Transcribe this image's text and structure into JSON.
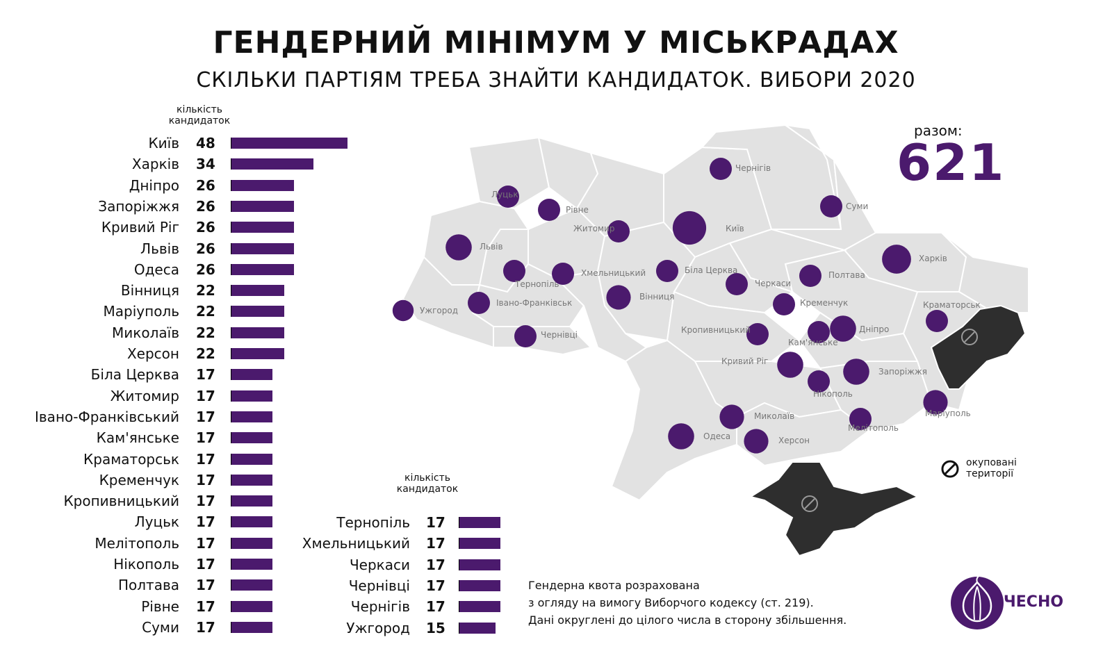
{
  "title": "ГЕНДЕРНИЙ МІНІМУМ У МІСЬКРАДАХ",
  "subtitle": "СКІЛЬКИ ПАРТІЯМ ТРЕБА ЗНАЙТИ КАНДИДАТОК. ВИБОРИ 2020",
  "column_header_line1": "кількість",
  "column_header_line2": "кандидаток",
  "total_label": "разом:",
  "total_value": "621",
  "legend_occupied_line1": "окуповані",
  "legend_occupied_line2": "території",
  "note_lines": [
    "Гендерна квота розрахована",
    "з огляду на вимогу Виборчого кодексу (ст. 219).",
    "Дані округлені до цілого числа в сторону збільшення."
  ],
  "logo_text": "ЧЕСНО",
  "colors": {
    "bar": "#4b1a6d",
    "dot": "#4b1a6d",
    "map_fill": "#e2e2e2",
    "map_border": "#ffffff",
    "occupied": "#2e2e2e",
    "text": "#111111"
  },
  "chart_data": [
    {
      "type": "bar",
      "orientation": "horizontal",
      "title": "",
      "categories": [
        "Київ",
        "Харків",
        "Дніпро",
        "Запоріжжя",
        "Кривий Ріг",
        "Львів",
        "Одеса",
        "Вінниця",
        "Маріуполь",
        "Миколаїв",
        "Херсон",
        "Біла Церква",
        "Житомир",
        "Івано-Франківський",
        "Кам'янське",
        "Краматорськ",
        "Кременчук",
        "Кропивницький",
        "Луцьк",
        "Мелітополь",
        "Нікополь",
        "Полтава",
        "Рівне",
        "Суми"
      ],
      "values": [
        48,
        34,
        26,
        26,
        26,
        26,
        26,
        22,
        22,
        22,
        22,
        17,
        17,
        17,
        17,
        17,
        17,
        17,
        17,
        17,
        17,
        17,
        17,
        17
      ],
      "value_header": "кількість кандидаток",
      "xlim": [
        0,
        48
      ]
    },
    {
      "type": "bar",
      "orientation": "horizontal",
      "title": "",
      "categories": [
        "Тернопіль",
        "Хмельницький",
        "Черкаси",
        "Чернівці",
        "Чернігів",
        "Ужгород"
      ],
      "values": [
        17,
        17,
        17,
        17,
        17,
        15
      ],
      "value_header": "кількість кандидаток",
      "xlim": [
        0,
        48
      ]
    },
    {
      "type": "scatter",
      "subtype": "bubble map",
      "title": "",
      "size_metric": "кількість кандидаток",
      "cities": [
        {
          "name": "Київ",
          "value": 48
        },
        {
          "name": "Харків",
          "value": 34
        },
        {
          "name": "Дніпро",
          "value": 26
        },
        {
          "name": "Запоріжжя",
          "value": 26
        },
        {
          "name": "Кривий Ріг",
          "value": 26
        },
        {
          "name": "Львів",
          "value": 26
        },
        {
          "name": "Одеса",
          "value": 26
        },
        {
          "name": "Вінниця",
          "value": 22
        },
        {
          "name": "Маріуполь",
          "value": 22
        },
        {
          "name": "Миколаїв",
          "value": 22
        },
        {
          "name": "Херсон",
          "value": 22
        },
        {
          "name": "Біла Церква",
          "value": 17
        },
        {
          "name": "Житомир",
          "value": 17
        },
        {
          "name": "Івано-Франківськ",
          "value": 17
        },
        {
          "name": "Кам'янське",
          "value": 17
        },
        {
          "name": "Краматорськ",
          "value": 17
        },
        {
          "name": "Кременчук",
          "value": 17
        },
        {
          "name": "Кропивницький",
          "value": 17
        },
        {
          "name": "Луцьк",
          "value": 17
        },
        {
          "name": "Мелітополь",
          "value": 17
        },
        {
          "name": "Нікополь",
          "value": 17
        },
        {
          "name": "Полтава",
          "value": 17
        },
        {
          "name": "Рівне",
          "value": 17
        },
        {
          "name": "Суми",
          "value": 17
        },
        {
          "name": "Тернопіль",
          "value": 17
        },
        {
          "name": "Хмельницький",
          "value": 17
        },
        {
          "name": "Черкаси",
          "value": 17
        },
        {
          "name": "Чернівці",
          "value": 17
        },
        {
          "name": "Чернігів",
          "value": 17
        },
        {
          "name": "Ужгород",
          "value": 15
        }
      ]
    }
  ]
}
